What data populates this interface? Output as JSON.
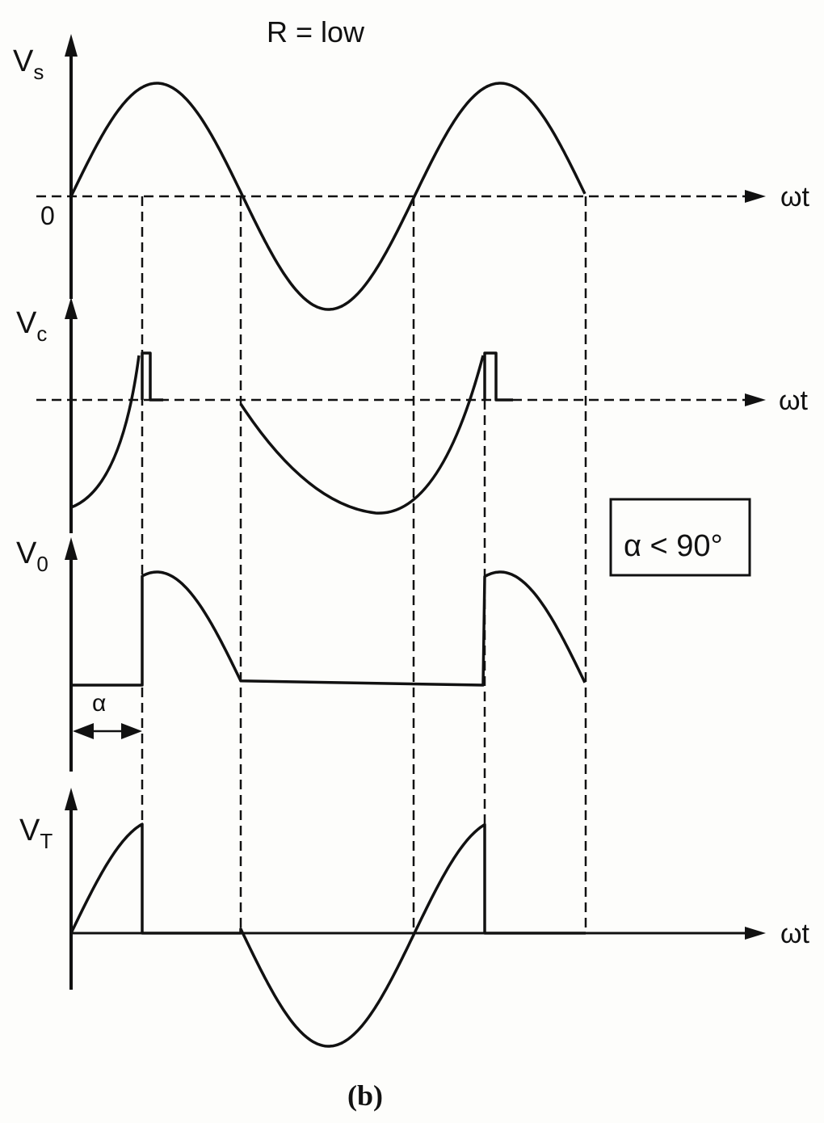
{
  "title": "R = low",
  "caption": "(b)",
  "condition": "α < 90°",
  "condition_parts": {
    "text": "α < 90",
    "sup": "o"
  },
  "axes": {
    "vs": {
      "main": "V",
      "sub": "s"
    },
    "vc": {
      "main": "V",
      "sub": "c"
    },
    "v0": {
      "main": "V",
      "sub": "0"
    },
    "vt": {
      "main": "V",
      "sub": "T"
    },
    "origin": "0",
    "time": "ωt"
  },
  "firing_angle_label": "α"
}
